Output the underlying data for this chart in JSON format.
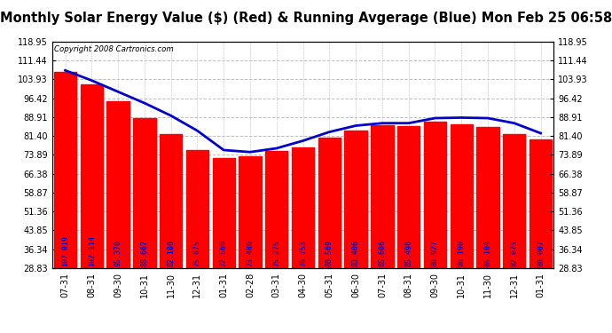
{
  "title": "Monthly Solar Energy Value ($) (Red) & Running Avgerage (Blue) Mon Feb 25 06:58",
  "copyright": "Copyright 2008 Cartronics.com",
  "categories": [
    "07-31",
    "08-31",
    "09-30",
    "10-31",
    "11-30",
    "12-31",
    "01-31",
    "02-28",
    "03-31",
    "04-30",
    "05-31",
    "06-30",
    "07-31",
    "08-31",
    "09-30",
    "10-31",
    "11-30",
    "12-31",
    "01-31"
  ],
  "bar_values": [
    107.019,
    102.114,
    95.37,
    88.667,
    82.18,
    75.875,
    72.569,
    73.486,
    75.275,
    76.753,
    80.569,
    83.406,
    85.606,
    85.496,
    86.927,
    86.19,
    85.104,
    82.073,
    80.007
  ],
  "running_avg": [
    107.5,
    103.5,
    99.0,
    94.5,
    89.5,
    83.5,
    75.8,
    75.0,
    76.5,
    79.5,
    83.0,
    85.5,
    86.5,
    86.5,
    88.5,
    88.7,
    88.5,
    86.5,
    82.5
  ],
  "bar_color": "#FF0000",
  "line_color": "#0000CC",
  "label_color": "#0000CC",
  "bg_color": "#FFFFFF",
  "grid_color": "#C0C0C0",
  "yticks": [
    28.83,
    36.34,
    43.85,
    51.36,
    58.87,
    66.38,
    73.89,
    81.4,
    88.91,
    96.42,
    103.93,
    111.44,
    118.95
  ],
  "ymin": 28.83,
  "ymax": 118.95,
  "title_fontsize": 10.5,
  "label_fontsize": 6.0,
  "tick_fontsize": 7.0
}
